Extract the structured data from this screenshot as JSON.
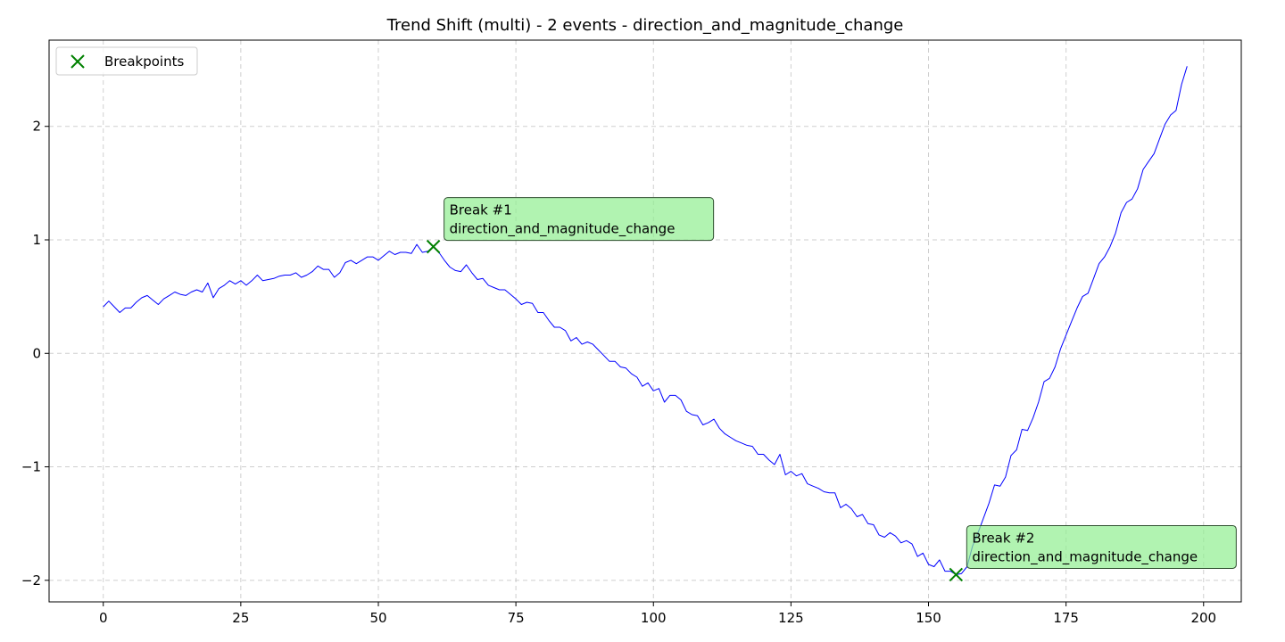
{
  "chart_data": {
    "type": "line",
    "title": "Trend Shift (multi) - 2 events - direction_and_magnitude_change",
    "xlabel": "",
    "ylabel": "",
    "xlim": [
      -9.85,
      206.85
    ],
    "ylim": [
      -2.19,
      2.76
    ],
    "xticks": [
      0,
      25,
      50,
      75,
      100,
      125,
      150,
      175,
      200
    ],
    "yticks": [
      -2,
      -1,
      0,
      1,
      2
    ],
    "ytick_labels": [
      "−2",
      "−1",
      "0",
      "1",
      "2"
    ],
    "grid": true,
    "legend": {
      "placement": "upper-left",
      "entries": [
        {
          "label": "Breakpoints",
          "marker": "x",
          "color": "#008000"
        }
      ]
    },
    "series": [
      {
        "color": "#0000ff",
        "x_start": 0,
        "values": [
          0.41,
          0.46,
          0.41,
          0.36,
          0.4,
          0.4,
          0.45,
          0.49,
          0.51,
          0.47,
          0.43,
          0.48,
          0.51,
          0.54,
          0.52,
          0.51,
          0.54,
          0.56,
          0.54,
          0.62,
          0.49,
          0.57,
          0.6,
          0.64,
          0.61,
          0.64,
          0.6,
          0.64,
          0.69,
          0.64,
          0.65,
          0.66,
          0.68,
          0.69,
          0.69,
          0.71,
          0.67,
          0.69,
          0.72,
          0.77,
          0.74,
          0.74,
          0.67,
          0.71,
          0.8,
          0.82,
          0.79,
          0.82,
          0.85,
          0.85,
          0.82,
          0.86,
          0.9,
          0.87,
          0.89,
          0.89,
          0.88,
          0.96,
          0.89,
          0.9,
          0.94,
          0.89,
          0.82,
          0.76,
          0.73,
          0.72,
          0.78,
          0.71,
          0.65,
          0.66,
          0.6,
          0.58,
          0.56,
          0.56,
          0.52,
          0.48,
          0.43,
          0.45,
          0.44,
          0.36,
          0.36,
          0.29,
          0.23,
          0.23,
          0.2,
          0.11,
          0.14,
          0.08,
          0.1,
          0.08,
          0.03,
          -0.02,
          -0.07,
          -0.07,
          -0.12,
          -0.13,
          -0.18,
          -0.21,
          -0.29,
          -0.26,
          -0.33,
          -0.31,
          -0.43,
          -0.37,
          -0.37,
          -0.41,
          -0.51,
          -0.54,
          -0.55,
          -0.63,
          -0.61,
          -0.58,
          -0.66,
          -0.71,
          -0.74,
          -0.77,
          -0.79,
          -0.81,
          -0.82,
          -0.89,
          -0.89,
          -0.94,
          -0.98,
          -0.89,
          -1.07,
          -1.04,
          -1.08,
          -1.06,
          -1.15,
          -1.17,
          -1.19,
          -1.22,
          -1.23,
          -1.23,
          -1.36,
          -1.33,
          -1.37,
          -1.44,
          -1.42,
          -1.5,
          -1.51,
          -1.6,
          -1.62,
          -1.58,
          -1.61,
          -1.67,
          -1.65,
          -1.68,
          -1.79,
          -1.76,
          -1.86,
          -1.88,
          -1.82,
          -1.92,
          -1.92,
          -1.95,
          -1.94,
          -1.88,
          -1.7,
          -1.58,
          -1.45,
          -1.32,
          -1.16,
          -1.17,
          -1.09,
          -0.9,
          -0.85,
          -0.67,
          -0.68,
          -0.57,
          -0.43,
          -0.25,
          -0.22,
          -0.12,
          0.04,
          0.16,
          0.28,
          0.4,
          0.5,
          0.53,
          0.66,
          0.79,
          0.85,
          0.94,
          1.06,
          1.24,
          1.33,
          1.36,
          1.45,
          1.62,
          1.69,
          1.76,
          1.89,
          2.02,
          2.1,
          2.14,
          2.37,
          2.53
        ]
      }
    ],
    "breakpoints": [
      {
        "x": 60,
        "y": 0.94,
        "label_line1": "Break #1",
        "label_line2": "direction_and_magnitude_change"
      },
      {
        "x": 155,
        "y": -1.95,
        "label_line1": "Break #2",
        "label_line2": "direction_and_magnitude_change"
      }
    ],
    "colors": {
      "line": "#0000ff",
      "marker": "#008000",
      "annot_bg": "#90ee90",
      "annot_border": "#2f4f2f"
    }
  }
}
